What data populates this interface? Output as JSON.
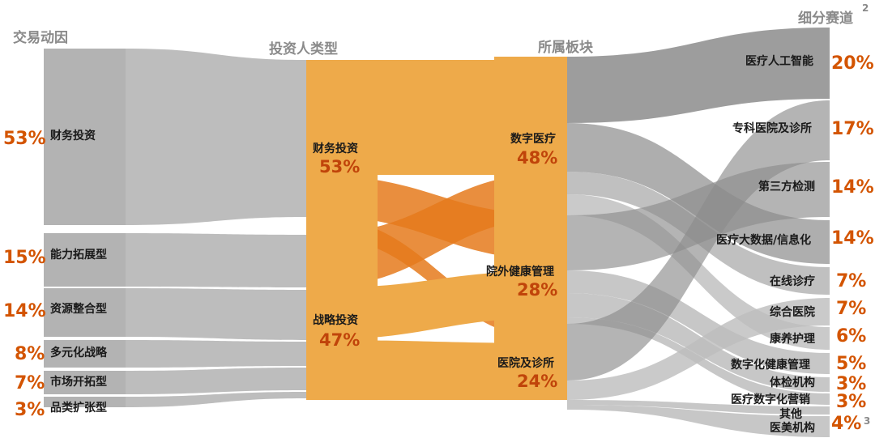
{
  "headers": {
    "col1": "交易动因",
    "col2": "投资人类型",
    "col3": "所属板块",
    "col4": "细分赛道",
    "col4_sup": "2"
  },
  "colors": {
    "gray_node": "#b3b3b3",
    "gray_flow": "#bdbdbd",
    "gray_dark_flow": "#8c8c8c",
    "orange_node": "#eeaa4a",
    "orange_flow": "#e57a1c",
    "percent": "#d35400"
  },
  "motives": [
    {
      "label": "财务投资",
      "percent": "53%"
    },
    {
      "label": "能力拓展型",
      "percent": "15%"
    },
    {
      "label": "资源整合型",
      "percent": "14%"
    },
    {
      "label": "多元化战略",
      "percent": "8%"
    },
    {
      "label": "市场开拓型",
      "percent": "7%"
    },
    {
      "label": "品类扩张型",
      "percent": "3%"
    }
  ],
  "investors": [
    {
      "label": "财务投资",
      "percent": "53%"
    },
    {
      "label": "战略投资",
      "percent": "47%"
    }
  ],
  "sectors": [
    {
      "label": "数字医疗",
      "percent": "48%"
    },
    {
      "label": "院外健康管理",
      "percent": "28%"
    },
    {
      "label": "医院及诊所",
      "percent": "24%"
    }
  ],
  "tracks": [
    {
      "label": "医疗人工智能",
      "percent": "20%"
    },
    {
      "label": "专科医院及诊所",
      "percent": "17%"
    },
    {
      "label": "第三方检测",
      "percent": "14%"
    },
    {
      "label": "医疗大数据/信息化",
      "percent": "14%"
    },
    {
      "label": "在线诊疗",
      "percent": "7%"
    },
    {
      "label": "综合医院",
      "percent": "7%"
    },
    {
      "label": "康养护理",
      "percent": "6%"
    },
    {
      "label": "数字化健康管理",
      "percent": "5%"
    },
    {
      "label": "体检机构",
      "percent": "3%"
    },
    {
      "label": "医疗数字化营销",
      "percent": "3%"
    },
    {
      "label": "其他",
      "percent": ""
    },
    {
      "label": "医美机构",
      "percent": "4%"
    }
  ],
  "footnote_sup": "3"
}
